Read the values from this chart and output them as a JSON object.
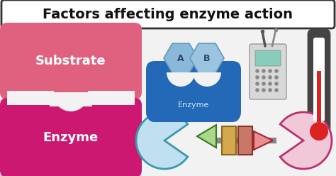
{
  "title": "Factors affecting enzyme action",
  "title_fontsize": 14,
  "title_fontweight": "bold",
  "background_color": "#f2f2f2",
  "title_box_color": "#ffffff",
  "title_border_color": "#333333",
  "substrate_color": "#e06080",
  "enzyme_bottom_color": "#cc1870",
  "substrate_text": "Substrate",
  "enzyme_text": "Enzyme",
  "text_color": "#ffffff",
  "hex_a_color": "#8ab8d8",
  "hex_b_color": "#9ac4e0",
  "hex_outline": "#6699bb",
  "enzyme_body_color": "#2468b8",
  "enzyme_label_color": "#d0eaf8",
  "enzyme_label_text": "Enzyme",
  "pacman_color": "#c0dff0",
  "pacman_outline": "#3a9aaa",
  "arrow_left_fill": "#a8d888",
  "arrow_left_outline": "#3a7722",
  "rect1_color": "#d4a84b",
  "rect1_outline": "#8a6622",
  "rect2_color": "#c87868",
  "rect2_outline": "#8a3322",
  "arrow_right_fill": "#e89090",
  "arrow_right_outline": "#aa2233",
  "pacman_right_color": "#f0c8d8",
  "pacman_right_outline": "#bb3070",
  "therm_body_color": "#444444",
  "therm_inner_color": "#ffffff",
  "therm_mercury_color": "#dd2222",
  "therm_bulb_color": "#dd2222"
}
